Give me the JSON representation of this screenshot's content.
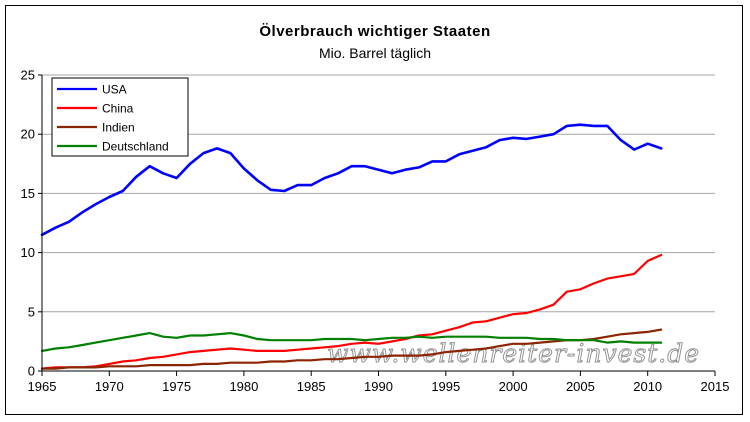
{
  "chart_data": {
    "type": "line",
    "title": "Ölverbrauch wichtiger Staaten",
    "subtitle": "Mio. Barrel täglich",
    "xlabel": "",
    "ylabel": "",
    "xlim": [
      1965,
      2015
    ],
    "ylim": [
      0,
      25
    ],
    "xticks": [
      "1965",
      "1970",
      "1975",
      "1980",
      "1985",
      "1990",
      "1995",
      "2000",
      "2005",
      "2010",
      "2015"
    ],
    "yticks": [
      "0",
      "5",
      "10",
      "15",
      "20",
      "25"
    ],
    "grid": true,
    "legend_position": "top-left",
    "watermark": "www.wellenreiter-invest.de",
    "x": [
      1965,
      1966,
      1967,
      1968,
      1969,
      1970,
      1971,
      1972,
      1973,
      1974,
      1975,
      1976,
      1977,
      1978,
      1979,
      1980,
      1981,
      1982,
      1983,
      1984,
      1985,
      1986,
      1987,
      1988,
      1989,
      1990,
      1991,
      1992,
      1993,
      1994,
      1995,
      1996,
      1997,
      1998,
      1999,
      2000,
      2001,
      2002,
      2003,
      2004,
      2005,
      2006,
      2007,
      2008,
      2009,
      2010,
      2011
    ],
    "series": [
      {
        "name": "USA",
        "color": "#0000ff",
        "values": [
          11.5,
          12.1,
          12.6,
          13.4,
          14.1,
          14.7,
          15.2,
          16.4,
          17.3,
          16.7,
          16.3,
          17.5,
          18.4,
          18.8,
          18.4,
          17.1,
          16.1,
          15.3,
          15.2,
          15.7,
          15.7,
          16.3,
          16.7,
          17.3,
          17.3,
          17.0,
          16.7,
          17.0,
          17.2,
          17.7,
          17.7,
          18.3,
          18.6,
          18.9,
          19.5,
          19.7,
          19.6,
          19.8,
          20.0,
          20.7,
          20.8,
          20.7,
          20.7,
          19.5,
          18.7,
          19.2,
          18.8
        ]
      },
      {
        "name": "China",
        "color": "#ff0000",
        "values": [
          0.2,
          0.3,
          0.3,
          0.3,
          0.4,
          0.6,
          0.8,
          0.9,
          1.1,
          1.2,
          1.4,
          1.6,
          1.7,
          1.8,
          1.9,
          1.8,
          1.7,
          1.7,
          1.7,
          1.8,
          1.9,
          2.0,
          2.1,
          2.3,
          2.4,
          2.3,
          2.5,
          2.7,
          3.0,
          3.1,
          3.4,
          3.7,
          4.1,
          4.2,
          4.5,
          4.8,
          4.9,
          5.2,
          5.6,
          6.7,
          6.9,
          7.4,
          7.8,
          8.0,
          8.2,
          9.3,
          9.8
        ]
      },
      {
        "name": "Indien",
        "color": "#8b2500",
        "values": [
          0.2,
          0.2,
          0.3,
          0.3,
          0.3,
          0.4,
          0.4,
          0.4,
          0.5,
          0.5,
          0.5,
          0.5,
          0.6,
          0.6,
          0.7,
          0.7,
          0.7,
          0.8,
          0.8,
          0.9,
          0.9,
          1.0,
          1.0,
          1.1,
          1.2,
          1.2,
          1.3,
          1.3,
          1.3,
          1.4,
          1.6,
          1.7,
          1.8,
          1.9,
          2.1,
          2.3,
          2.3,
          2.4,
          2.5,
          2.6,
          2.6,
          2.7,
          2.9,
          3.1,
          3.2,
          3.3,
          3.5
        ]
      },
      {
        "name": "Deutschland",
        "color": "#008000",
        "values": [
          1.7,
          1.9,
          2.0,
          2.2,
          2.4,
          2.6,
          2.8,
          3.0,
          3.2,
          2.9,
          2.8,
          3.0,
          3.0,
          3.1,
          3.2,
          3.0,
          2.7,
          2.6,
          2.6,
          2.6,
          2.6,
          2.7,
          2.7,
          2.7,
          2.6,
          2.7,
          2.8,
          2.8,
          2.9,
          2.8,
          2.9,
          2.9,
          2.9,
          2.9,
          2.8,
          2.8,
          2.8,
          2.7,
          2.7,
          2.6,
          2.6,
          2.6,
          2.4,
          2.5,
          2.4,
          2.4,
          2.4
        ]
      }
    ]
  }
}
